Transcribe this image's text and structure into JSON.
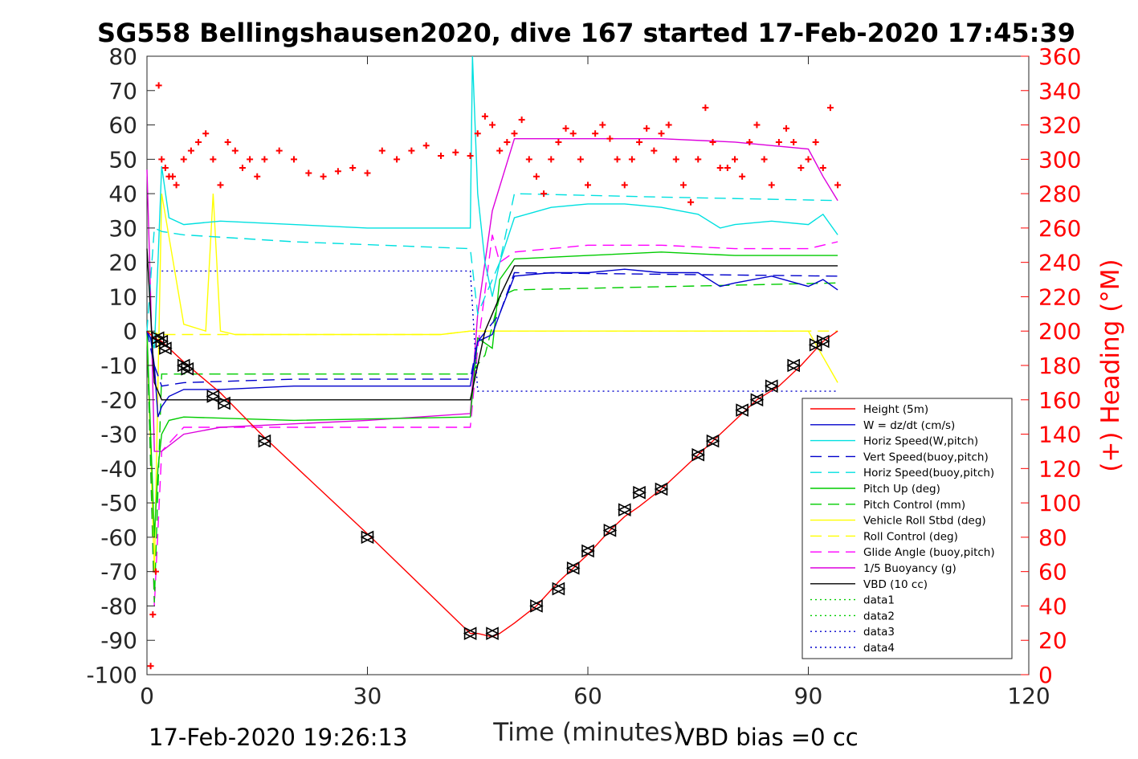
{
  "chart_data": {
    "type": "line",
    "title": "SG558 Bellingshausen2020, dive 167 started 17-Feb-2020 17:45:39",
    "xlabel": "Time (minutes)",
    "ylabel_right": "(+) Heading (°M)",
    "xlim": [
      0,
      120
    ],
    "ylim_left": [
      -100,
      80
    ],
    "ylim_right": [
      0,
      360
    ],
    "x_ticks": [
      "0",
      "30",
      "60",
      "90",
      "120"
    ],
    "y_ticks_left": [
      "80",
      "70",
      "60",
      "50",
      "40",
      "30",
      "20",
      "10",
      "0",
      "-10",
      "-20",
      "-30",
      "-40",
      "-50",
      "-60",
      "-70",
      "-80",
      "-90",
      "-100"
    ],
    "y_ticks_right": [
      "360",
      "340",
      "320",
      "300",
      "280",
      "260",
      "240",
      "220",
      "200",
      "180",
      "160",
      "140",
      "120",
      "100",
      "80",
      "60",
      "40",
      "20",
      "0"
    ],
    "footer_left": "17-Feb-2020 19:26:13",
    "footer_right": "VBD bias =0 cc",
    "legend_position": "bottom-right",
    "grid": false,
    "colors": {
      "height": "#ff0000",
      "w": "#0000cc",
      "horiz_w": "#00e0e0",
      "pitch": "#00cc00",
      "roll": "#ffff00",
      "glide": "#ff00ff",
      "buoy": "#dd00dd",
      "vbd": "#000000",
      "heading": "#ff0000",
      "data_green": "#00cc00",
      "data_blue": "#0000cc"
    },
    "series": [
      {
        "name": "Height (5m)",
        "style": "solid",
        "color": "#ff0000",
        "x": [
          0,
          0.5,
          1,
          2,
          3,
          5,
          10,
          16,
          30,
          44,
          45,
          47,
          48,
          50,
          53,
          56,
          58,
          60,
          63,
          65,
          67,
          70,
          75,
          77,
          80,
          83,
          86,
          89,
          92,
          94
        ],
        "y": [
          0,
          -1,
          -2,
          -3,
          -5,
          -9,
          -18,
          -31,
          -59,
          -88,
          -88,
          -89,
          -88,
          -85,
          -80,
          -73,
          -69,
          -65,
          -58,
          -54,
          -51,
          -46,
          -36,
          -32,
          -26,
          -20,
          -16,
          -10,
          -3,
          0
        ]
      },
      {
        "name": "W = dz/dt (cm/s)",
        "style": "solid",
        "color": "#0000cc",
        "x": [
          0,
          0.5,
          1,
          1.5,
          2,
          3,
          5,
          10,
          20,
          30,
          40,
          44,
          45,
          47,
          48,
          50,
          55,
          60,
          65,
          70,
          75,
          78,
          80,
          85,
          90,
          92,
          94
        ],
        "y": [
          0,
          -2,
          -10,
          -25,
          -22,
          -19,
          -17,
          -17,
          -16,
          -16,
          -16,
          -16,
          -3,
          -1,
          5,
          16,
          17,
          17,
          18,
          17,
          17,
          13,
          14,
          16,
          13,
          15,
          12
        ]
      },
      {
        "name": "Horiz Speed(W,pitch)",
        "style": "solid",
        "color": "#00e0e0",
        "x": [
          0,
          1,
          1.5,
          2,
          3,
          5,
          10,
          20,
          30,
          40,
          44,
          44.3,
          45,
          46,
          47,
          48,
          50,
          55,
          60,
          65,
          70,
          75,
          78,
          80,
          85,
          90,
          92,
          94
        ],
        "y": [
          0,
          -5,
          20,
          48,
          33,
          31,
          32,
          31,
          30,
          30,
          30,
          80,
          40,
          20,
          10,
          20,
          33,
          36,
          37,
          37,
          36,
          34,
          30,
          31,
          32,
          31,
          34,
          28
        ]
      },
      {
        "name": "Vert Speed(buoy,pitch)",
        "style": "dash",
        "color": "#0000cc",
        "x": [
          0,
          1,
          2,
          5,
          20,
          44,
          45,
          48,
          50,
          94
        ],
        "y": [
          0,
          -10,
          -16,
          -15,
          -14,
          -14,
          -3,
          5,
          17,
          16
        ]
      },
      {
        "name": "Horiz Speed(buoy,pitch)",
        "style": "dash",
        "color": "#00e0e0",
        "x": [
          0,
          1,
          2,
          5,
          20,
          44,
          45,
          48,
          50,
          70,
          94
        ],
        "y": [
          0,
          30,
          29,
          28,
          26,
          24,
          5,
          20,
          40,
          39,
          38
        ]
      },
      {
        "name": "Pitch Up (deg)",
        "style": "solid",
        "color": "#00cc00",
        "x": [
          0,
          1,
          1.5,
          2,
          3,
          5,
          20,
          44,
          45,
          47,
          48,
          50,
          60,
          70,
          80,
          90,
          94
        ],
        "y": [
          0,
          -60,
          -40,
          -30,
          -26,
          -25,
          -26,
          -25,
          -2,
          -5,
          15,
          21,
          22,
          23,
          22,
          22,
          22
        ]
      },
      {
        "name": "Pitch Control (mm)",
        "style": "dash",
        "color": "#00cc00",
        "x": [
          0,
          1,
          2,
          44,
          46,
          48,
          50,
          94
        ],
        "y": [
          0,
          -79,
          -12.5,
          -12.5,
          -7,
          10,
          12,
          14
        ]
      },
      {
        "name": "Vehicle Roll Stbd (deg)",
        "style": "solid",
        "color": "#ffff00",
        "x": [
          0,
          1,
          2,
          5,
          8,
          9,
          10,
          12,
          20,
          30,
          40,
          44,
          50,
          55,
          60,
          65,
          70,
          75,
          80,
          85,
          90,
          94
        ],
        "y": [
          0,
          -70,
          40,
          2,
          0,
          40,
          0,
          -1,
          -1,
          -1,
          -1,
          0,
          0,
          0,
          0,
          0,
          0,
          0,
          0,
          0,
          0,
          -15
        ]
      },
      {
        "name": "Roll Control (deg)",
        "style": "dash",
        "color": "#ffff00",
        "x": [
          0,
          2,
          5,
          10,
          20,
          30,
          40,
          44,
          50,
          60,
          70,
          80,
          90,
          94
        ],
        "y": [
          0,
          -1,
          -1,
          -1,
          -1,
          -1,
          -1,
          0,
          0,
          0,
          0,
          0,
          0,
          0
        ]
      },
      {
        "name": "Glide Angle (buoy,pitch)",
        "style": "dash",
        "color": "#ff00ff",
        "x": [
          0,
          1,
          2,
          5,
          20,
          44,
          45,
          47,
          48,
          50,
          60,
          70,
          80,
          90,
          94
        ],
        "y": [
          0,
          -80,
          -35,
          -28,
          -28,
          -28,
          -5,
          28,
          20,
          23,
          25,
          25,
          24,
          24,
          26
        ]
      },
      {
        "name": "1/5 Buoyancy (g)",
        "style": "solid",
        "color": "#dd00dd",
        "x": [
          0,
          0.5,
          1,
          2,
          5,
          10,
          20,
          30,
          44,
          45,
          47,
          50,
          55,
          60,
          70,
          80,
          90,
          92,
          94
        ],
        "y": [
          47,
          10,
          -35,
          -35,
          -30,
          -28,
          -27,
          -26,
          -24,
          5,
          35,
          56,
          56,
          56,
          56,
          55,
          53,
          45,
          38
        ]
      },
      {
        "name": "VBD (10 cc)",
        "style": "solid",
        "color": "#000000",
        "x": [
          0,
          0.5,
          1,
          2,
          5,
          44,
          46,
          48,
          50,
          94
        ],
        "y": [
          24,
          5,
          -15,
          -20,
          -20,
          -20,
          0,
          10,
          19,
          19
        ]
      },
      {
        "name": "data1",
        "style": "dot",
        "color": "#00cc00",
        "x": [],
        "y": []
      },
      {
        "name": "data2",
        "style": "dot",
        "color": "#00cc00",
        "x": [],
        "y": []
      },
      {
        "name": "data3",
        "style": "dot",
        "color": "#0000cc",
        "x": [
          2,
          44,
          45,
          94
        ],
        "y": [
          17.5,
          17.5,
          -17.5,
          -17.5
        ]
      },
      {
        "name": "data4",
        "style": "dot",
        "color": "#0000cc",
        "x": [],
        "y": []
      }
    ],
    "heading_series": {
      "axis": "right",
      "marker": "+",
      "color": "#ff0000",
      "x": [
        0.5,
        0.8,
        1.2,
        1.6,
        2,
        2.5,
        3,
        3.5,
        4,
        5,
        6,
        7,
        8,
        9,
        10,
        11,
        12,
        13,
        14,
        15,
        16,
        18,
        20,
        22,
        24,
        26,
        28,
        30,
        32,
        34,
        36,
        38,
        40,
        42,
        44,
        45,
        46,
        47,
        48,
        49,
        50,
        51,
        52,
        53,
        54,
        55,
        56,
        57,
        58,
        59,
        60,
        61,
        62,
        63,
        64,
        65,
        66,
        67,
        68,
        69,
        70,
        71,
        72,
        73,
        74,
        75,
        76,
        77,
        78,
        79,
        80,
        81,
        82,
        83,
        84,
        85,
        86,
        87,
        88,
        89,
        90,
        91,
        92,
        93,
        94
      ],
      "y": [
        5,
        35,
        60,
        343,
        300,
        295,
        290,
        290,
        285,
        300,
        305,
        310,
        315,
        300,
        285,
        310,
        305,
        295,
        300,
        290,
        300,
        305,
        300,
        292,
        290,
        293,
        295,
        292,
        305,
        300,
        305,
        308,
        302,
        304,
        302,
        315,
        325,
        320,
        305,
        310,
        315,
        323,
        300,
        290,
        280,
        300,
        310,
        318,
        315,
        300,
        285,
        315,
        320,
        312,
        300,
        285,
        300,
        310,
        318,
        305,
        315,
        320,
        300,
        285,
        275,
        300,
        330,
        310,
        295,
        295,
        300,
        290,
        310,
        320,
        300,
        285,
        310,
        318,
        310,
        295,
        300,
        310,
        295,
        330,
        285
      ]
    },
    "vbd_markers": {
      "marker": "triangle",
      "color": "#000000",
      "x": [
        1.5,
        2,
        2.5,
        5,
        5.5,
        9,
        10.5,
        16,
        30,
        44,
        47,
        53,
        56,
        58,
        60,
        63,
        65,
        67,
        70,
        75,
        77,
        81,
        83,
        85,
        88,
        91,
        92
      ],
      "y": [
        -2,
        -3,
        -5,
        -10,
        -11,
        -19,
        -21,
        -32,
        -60,
        -88,
        -88,
        -80,
        -75,
        -69,
        -64,
        -58,
        -52,
        -47,
        -46,
        -36,
        -32,
        -23,
        -20,
        -16,
        -10,
        -4,
        -3
      ]
    }
  }
}
